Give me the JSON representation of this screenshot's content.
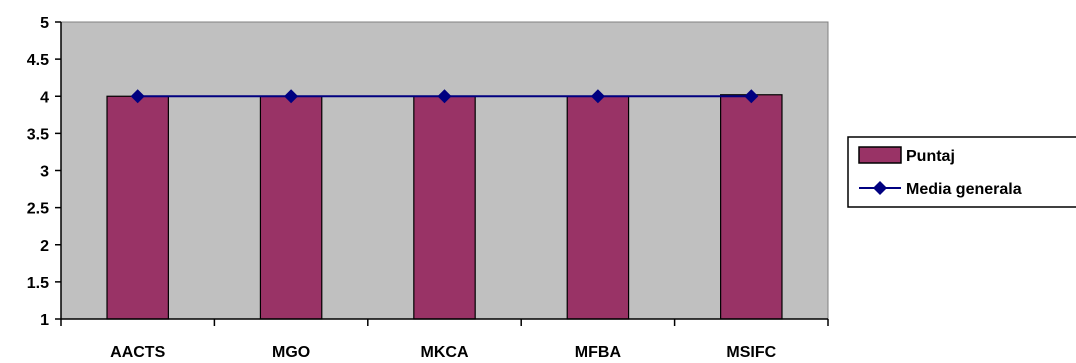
{
  "chart_data": {
    "type": "bar",
    "categories": [
      "AACTS",
      "MGO",
      "MKCA",
      "MFBA",
      "MSIFC"
    ],
    "series": [
      {
        "name": "Puntaj",
        "type": "bar",
        "values": [
          4.0,
          4.0,
          4.0,
          4.0,
          4.02
        ],
        "color": "#993366"
      },
      {
        "name": "Media generala",
        "type": "line",
        "values": [
          4.0,
          4.0,
          4.0,
          4.0,
          4.0
        ],
        "color": "#000080",
        "marker": "diamond"
      }
    ],
    "ylim": [
      1,
      5
    ],
    "yticks": [
      "1",
      "1.5",
      "2",
      "2.5",
      "3",
      "3.5",
      "4",
      "4.5",
      "5"
    ],
    "plot_background": "#c0c0c0",
    "grid": false,
    "legend_position": "right"
  }
}
